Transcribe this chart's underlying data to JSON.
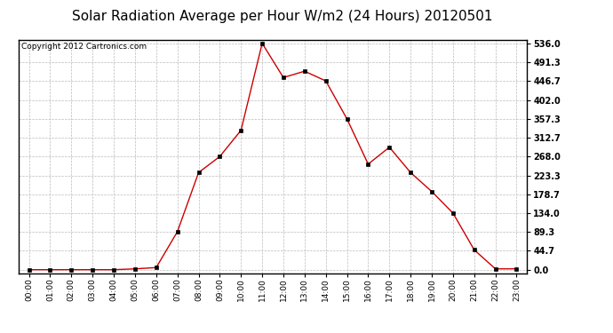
{
  "title": "Solar Radiation Average per Hour W/m2 (24 Hours) 20120501",
  "copyright": "Copyright 2012 Cartronics.com",
  "hours": [
    "00:00",
    "01:00",
    "02:00",
    "03:00",
    "04:00",
    "05:00",
    "06:00",
    "07:00",
    "08:00",
    "09:00",
    "10:00",
    "11:00",
    "12:00",
    "13:00",
    "14:00",
    "15:00",
    "16:00",
    "17:00",
    "18:00",
    "19:00",
    "20:00",
    "21:00",
    "22:00",
    "23:00"
  ],
  "values": [
    0,
    0,
    0,
    0,
    0,
    2,
    5,
    90,
    230,
    268,
    330,
    536,
    455,
    470,
    447,
    357,
    250,
    290,
    230,
    185,
    134,
    47,
    2,
    2
  ],
  "line_color": "#cc0000",
  "marker": "s",
  "marker_color": "#000000",
  "marker_size": 2.5,
  "bg_color": "#ffffff",
  "grid_color": "#bbbbbb",
  "title_fontsize": 11,
  "copyright_fontsize": 6.5,
  "ytick_values": [
    0.0,
    44.7,
    89.3,
    134.0,
    178.7,
    223.3,
    268.0,
    312.7,
    357.3,
    402.0,
    446.7,
    491.3,
    536.0
  ],
  "ymax": 536.0,
  "ymin": 0.0
}
